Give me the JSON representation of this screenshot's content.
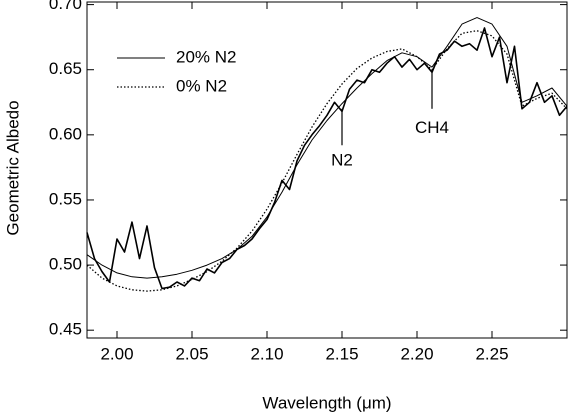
{
  "chart_data": {
    "type": "line",
    "x_label": "Wavelength (μm)",
    "y_label": "Geometric Albedo",
    "xlim": [
      1.98,
      2.3
    ],
    "ylim": [
      0.444,
      0.702
    ],
    "xticks": [
      {
        "value": 2,
        "label": "2.00"
      },
      2.05,
      {
        "value": 2.1,
        "label": "2.10"
      },
      2.15,
      {
        "value": 2.2,
        "label": "2.20"
      },
      2.25
    ],
    "yticks": [
      0.45,
      {
        "value": 0.5,
        "label": "0.50"
      },
      0.55,
      {
        "value": 0.6,
        "label": "0.60"
      },
      0.65,
      {
        "value": 0.7,
        "label": "0.70"
      }
    ],
    "legend": "upper left",
    "series": [
      {
        "color": "#000000",
        "style": "solid",
        "width": 1.6,
        "x": [
          1.98,
          1.985,
          1.99,
          1.995,
          2.0,
          2.005,
          2.01,
          2.015,
          2.02,
          2.025,
          2.03,
          2.035,
          2.04,
          2.045,
          2.05,
          2.055,
          2.06,
          2.065,
          2.07,
          2.075,
          2.08,
          2.085,
          2.09,
          2.095,
          2.1,
          2.105,
          2.11,
          2.115,
          2.12,
          2.125,
          2.13,
          2.135,
          2.14,
          2.145,
          2.15,
          2.155,
          2.16,
          2.165,
          2.17,
          2.175,
          2.18,
          2.185,
          2.19,
          2.195,
          2.2,
          2.205,
          2.21,
          2.215,
          2.22,
          2.225,
          2.23,
          2.235,
          2.24,
          2.245,
          2.25,
          2.255,
          2.26,
          2.265,
          2.27,
          2.275,
          2.28,
          2.285,
          2.29,
          2.295,
          2.3
        ],
        "values": [
          0.525,
          0.505,
          0.495,
          0.487,
          0.52,
          0.51,
          0.533,
          0.505,
          0.53,
          0.498,
          0.482,
          0.483,
          0.487,
          0.484,
          0.49,
          0.488,
          0.497,
          0.494,
          0.502,
          0.505,
          0.512,
          0.515,
          0.52,
          0.528,
          0.535,
          0.548,
          0.565,
          0.558,
          0.58,
          0.592,
          0.6,
          0.607,
          0.615,
          0.625,
          0.618,
          0.635,
          0.642,
          0.64,
          0.65,
          0.648,
          0.655,
          0.66,
          0.652,
          0.658,
          0.65,
          0.655,
          0.648,
          0.662,
          0.665,
          0.672,
          0.668,
          0.67,
          0.665,
          0.682,
          0.66,
          0.675,
          0.64,
          0.668,
          0.62,
          0.625,
          0.64,
          0.625,
          0.63,
          0.615,
          0.622
        ]
      },
      {
        "name": "20% N2",
        "color": "#000000",
        "style": "solid",
        "width": 1,
        "x": [
          1.98,
          1.99,
          2.0,
          2.01,
          2.02,
          2.03,
          2.04,
          2.05,
          2.06,
          2.07,
          2.08,
          2.09,
          2.1,
          2.11,
          2.12,
          2.13,
          2.14,
          2.15,
          2.16,
          2.17,
          2.18,
          2.19,
          2.2,
          2.21,
          2.22,
          2.23,
          2.24,
          2.25,
          2.26,
          2.27,
          2.28,
          2.29,
          2.3
        ],
        "values": [
          0.508,
          0.5,
          0.494,
          0.491,
          0.49,
          0.491,
          0.493,
          0.496,
          0.5,
          0.505,
          0.512,
          0.522,
          0.537,
          0.556,
          0.577,
          0.596,
          0.611,
          0.624,
          0.636,
          0.647,
          0.657,
          0.663,
          0.66,
          0.652,
          0.668,
          0.685,
          0.69,
          0.685,
          0.668,
          0.625,
          0.63,
          0.636,
          0.622
        ]
      },
      {
        "name": "0% N2",
        "color": "#000000",
        "style": "dotted",
        "width": 1.3,
        "x": [
          1.98,
          1.99,
          2.0,
          2.01,
          2.02,
          2.03,
          2.04,
          2.05,
          2.06,
          2.07,
          2.08,
          2.09,
          2.1,
          2.11,
          2.12,
          2.13,
          2.14,
          2.15,
          2.16,
          2.17,
          2.18,
          2.19,
          2.2,
          2.21,
          2.22,
          2.23,
          2.24,
          2.25,
          2.26,
          2.27,
          2.28,
          2.29,
          2.3
        ],
        "values": [
          0.5,
          0.49,
          0.484,
          0.481,
          0.48,
          0.481,
          0.484,
          0.489,
          0.495,
          0.503,
          0.513,
          0.526,
          0.543,
          0.563,
          0.585,
          0.606,
          0.624,
          0.639,
          0.651,
          0.659,
          0.664,
          0.666,
          0.66,
          0.65,
          0.666,
          0.678,
          0.68,
          0.676,
          0.662,
          0.622,
          0.628,
          0.632,
          0.62
        ]
      }
    ],
    "annotations": [
      {
        "text": "N2",
        "x": 2.15,
        "y": 0.58,
        "line": [
          0.592,
          0.62
        ]
      },
      {
        "text": "CH4",
        "x": 2.21,
        "y": 0.605,
        "line": [
          0.62,
          0.65
        ]
      }
    ]
  }
}
